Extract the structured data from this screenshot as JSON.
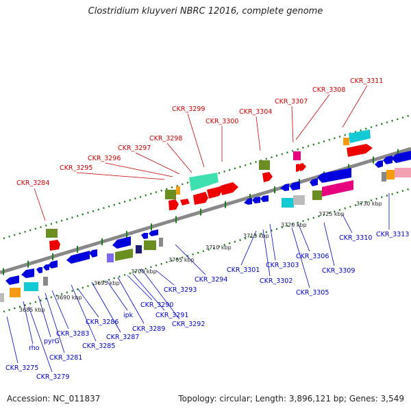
{
  "title": "Clostridium kluyveri NBRC 12016, complete genome",
  "footer": {
    "accession": "Accession: NC_011837",
    "summary": "Topology: circular; Length: 3,896,121 bp; Genes: 3,549"
  },
  "colors": {
    "top_label": "#cc0000",
    "bottom_label": "#0000cc",
    "backbone": "#888888",
    "ruler": "#1a7a1a"
  },
  "scale": [
    "3685 kbp",
    "3690 kbp",
    "3695 kbp",
    "3700 kbp",
    "3705 kbp",
    "3710 kbp",
    "3715 kbp",
    "3720 kbp",
    "3725 kbp",
    "3730 kbp"
  ],
  "top_labels": [
    "CKR_3284",
    "CKR_3295",
    "CKR_3296",
    "CKR_3297",
    "CKR_3298",
    "CKR_3299",
    "CKR_3300",
    "CKR_3304",
    "CKR_3307",
    "CKR_3308",
    "CKR_3311"
  ],
  "bottom_labels": [
    "CKR_3275",
    "rho",
    "CKR_3279",
    "pyrG",
    "CKR_3281",
    "CKR_3283",
    "CKR_3285",
    "CKR_3286",
    "CKR_3287",
    "ipk",
    "CKR_3289",
    "CKR_3290",
    "CKR_3291",
    "CKR_3292",
    "CKR_3293",
    "CKR_3294",
    "CKR_3301",
    "CKR_3302",
    "CKR_3303",
    "CKR_3305",
    "CKR_3306",
    "CKR_3309",
    "CKR_3310",
    "CKR_3313"
  ]
}
